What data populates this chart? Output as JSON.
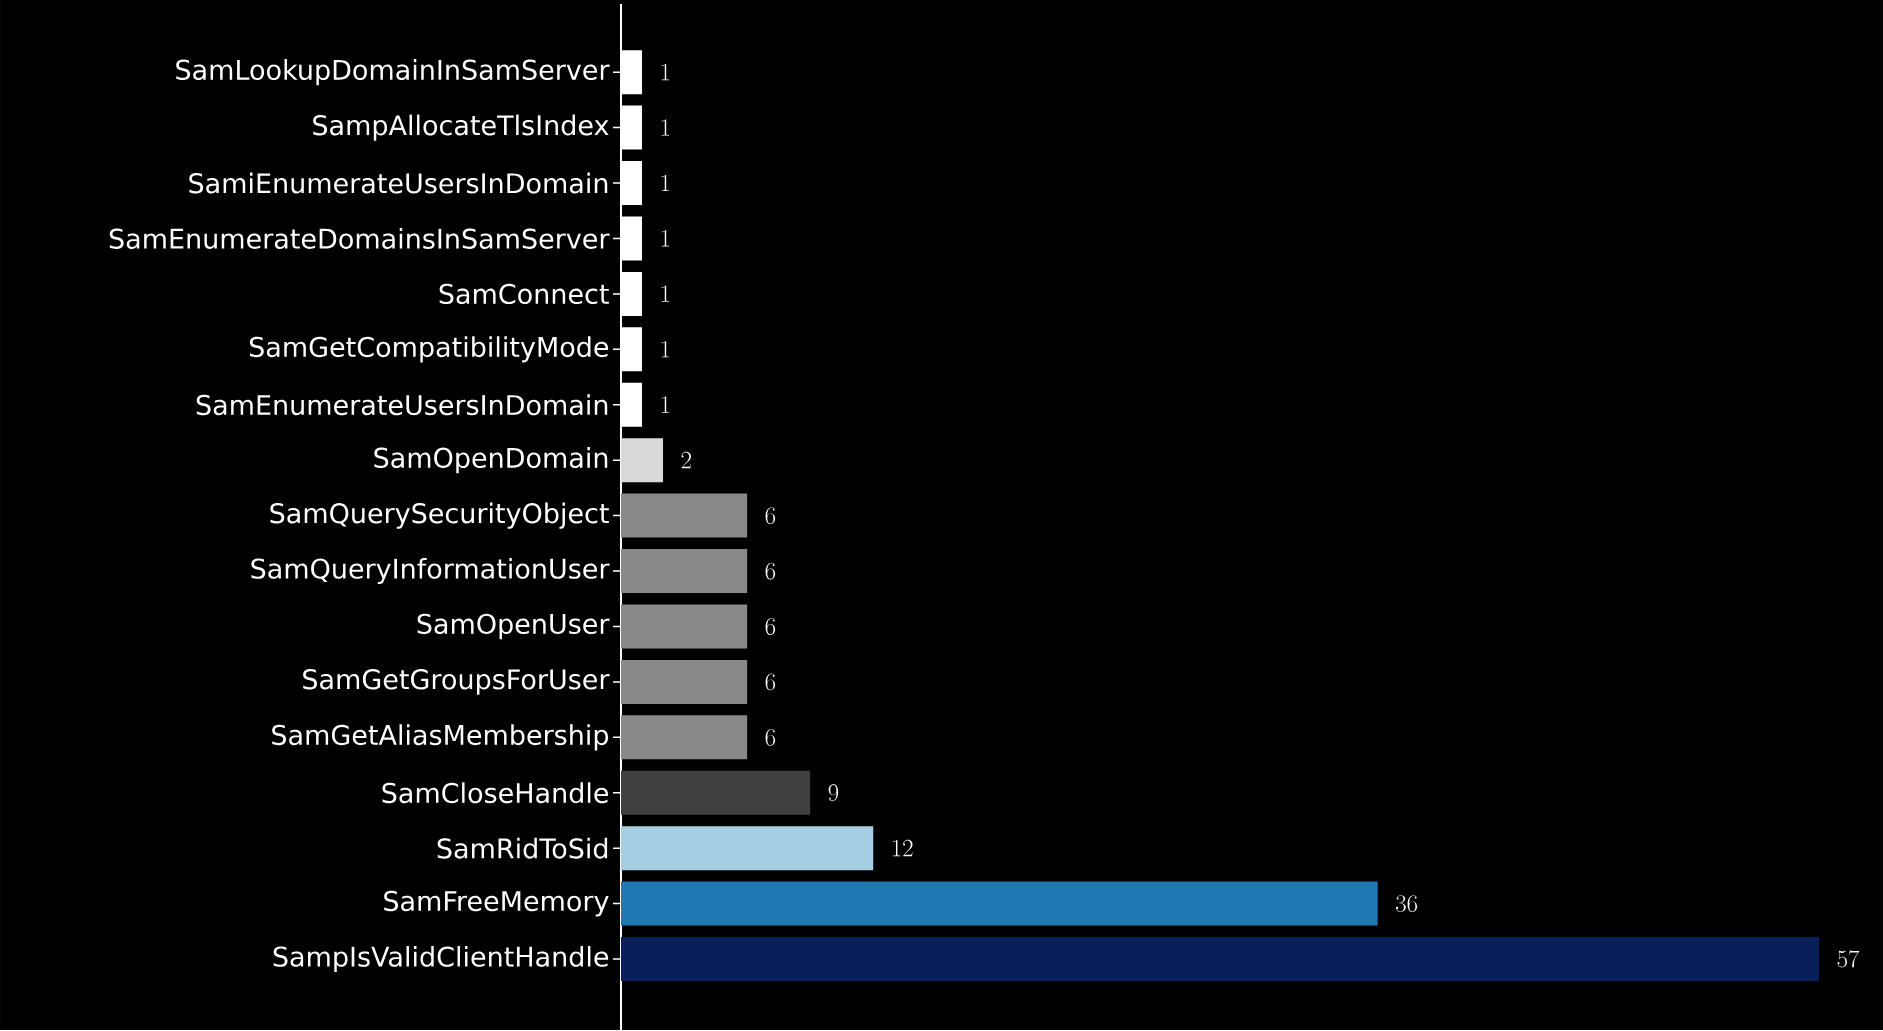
{
  "chart_data": {
    "type": "bar",
    "orientation": "horizontal",
    "data_labels": true,
    "categories": [
      "SamLookupDomainInSamServer",
      "SampAllocateTlsIndex",
      "SamiEnumerateUsersInDomain",
      "SamEnumerateDomainsInSamServer",
      "SamConnect",
      "SamGetCompatibilityMode",
      "SamEnumerateUsersInDomain",
      "SamOpenDomain",
      "SamQuerySecurityObject",
      "SamQueryInformationUser",
      "SamOpenUser",
      "SamGetGroupsForUser",
      "SamGetAliasMembership",
      "SamCloseHandle",
      "SamRidToSid",
      "SamFreeMemory",
      "SampIsValidClientHandle"
    ],
    "values": [
      1,
      1,
      1,
      1,
      1,
      1,
      1,
      2,
      6,
      6,
      6,
      6,
      6,
      9,
      12,
      36,
      57
    ],
    "colors": [
      "#ffffff",
      "#ffffff",
      "#ffffff",
      "#ffffff",
      "#ffffff",
      "#ffffff",
      "#ffffff",
      "#d9d9d9",
      "#898989",
      "#898989",
      "#898989",
      "#898989",
      "#898989",
      "#404040",
      "#a6cee3",
      "#1f78b4",
      "#081f5a"
    ]
  }
}
